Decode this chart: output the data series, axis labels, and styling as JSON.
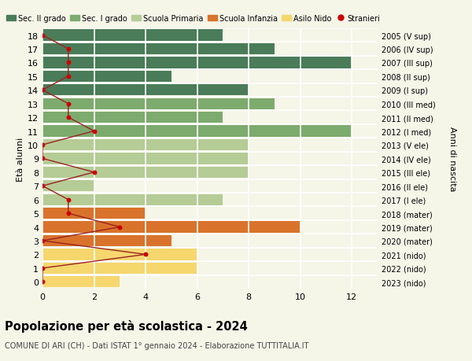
{
  "ages": [
    18,
    17,
    16,
    15,
    14,
    13,
    12,
    11,
    10,
    9,
    8,
    7,
    6,
    5,
    4,
    3,
    2,
    1,
    0
  ],
  "right_labels": [
    "2005 (V sup)",
    "2006 (IV sup)",
    "2007 (III sup)",
    "2008 (II sup)",
    "2009 (I sup)",
    "2010 (III med)",
    "2011 (II med)",
    "2012 (I med)",
    "2013 (V ele)",
    "2014 (IV ele)",
    "2015 (III ele)",
    "2016 (II ele)",
    "2017 (I ele)",
    "2018 (mater)",
    "2019 (mater)",
    "2020 (mater)",
    "2021 (nido)",
    "2022 (nido)",
    "2023 (nido)"
  ],
  "bar_values": [
    7,
    9,
    12,
    5,
    8,
    9,
    7,
    12,
    8,
    8,
    8,
    2,
    7,
    4,
    10,
    5,
    6,
    6,
    3
  ],
  "bar_colors": [
    "#4a7c59",
    "#4a7c59",
    "#4a7c59",
    "#4a7c59",
    "#4a7c59",
    "#7dab6e",
    "#7dab6e",
    "#7dab6e",
    "#b5cc96",
    "#b5cc96",
    "#b5cc96",
    "#b5cc96",
    "#b5cc96",
    "#d9732b",
    "#d9732b",
    "#d9732b",
    "#f5d76e",
    "#f5d76e",
    "#f5d76e"
  ],
  "stranieri_x": [
    0,
    1,
    1,
    1,
    0,
    1,
    1,
    2,
    0,
    0,
    2,
    0,
    1,
    1,
    3,
    0,
    4,
    0,
    0
  ],
  "legend_labels": [
    "Sec. II grado",
    "Sec. I grado",
    "Scuola Primaria",
    "Scuola Infanzia",
    "Asilo Nido",
    "Stranieri"
  ],
  "legend_colors": [
    "#4a7c59",
    "#7dab6e",
    "#b5cc96",
    "#d9732b",
    "#f5d76e",
    "#cc0000"
  ],
  "title": "Popolazione per età scolastica - 2024",
  "subtitle": "COMUNE DI ARI (CH) - Dati ISTAT 1° gennaio 2024 - Elaborazione TUTTITALIA.IT",
  "ylabel_left": "Età alunni",
  "ylabel_right": "Anni di nascita",
  "xlim": [
    0,
    13
  ],
  "xticks": [
    0,
    2,
    4,
    6,
    8,
    10,
    12
  ],
  "bg_color": "#f5f5e8",
  "grid_color": "#ffffff",
  "bar_height": 0.82,
  "stranieri_color": "#cc0000",
  "stranieri_line_color": "#9b2222"
}
